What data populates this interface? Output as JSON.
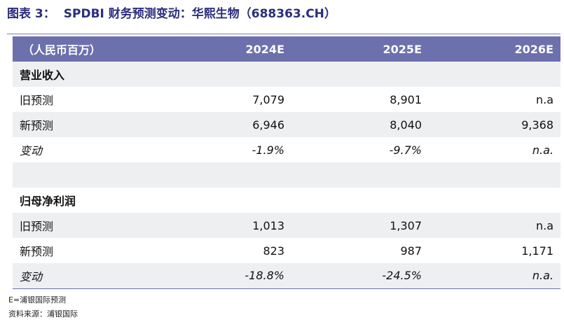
{
  "title": {
    "caption": "图表 3：",
    "text": "SPDBI 财务预测变动：华熙生物（688363.CH）"
  },
  "table": {
    "headers": [
      "（人民币百万）",
      "2024E",
      "2025E",
      "2026E"
    ],
    "sections": [
      {
        "name": "营业收入",
        "rows": [
          {
            "label": "旧预测",
            "values": [
              "7,079",
              "8,901",
              "n.a"
            ]
          },
          {
            "label": "新预测",
            "values": [
              "6,946",
              "8,040",
              "9,368"
            ]
          },
          {
            "label": "变动",
            "values": [
              "-1.9%",
              "-9.7%",
              "n.a."
            ]
          }
        ]
      },
      {
        "name": "归母净利润",
        "rows": [
          {
            "label": "旧预测",
            "values": [
              "1,013",
              "1,307",
              "n.a"
            ]
          },
          {
            "label": "新预测",
            "values": [
              "823",
              "987",
              "1,171"
            ]
          },
          {
            "label": "变动",
            "values": [
              "-18.8%",
              "-24.5%",
              "n.a."
            ]
          }
        ]
      }
    ]
  },
  "notes": {
    "estimate": "E=浦银国际预测",
    "source": "资料来源：浦银国际"
  }
}
